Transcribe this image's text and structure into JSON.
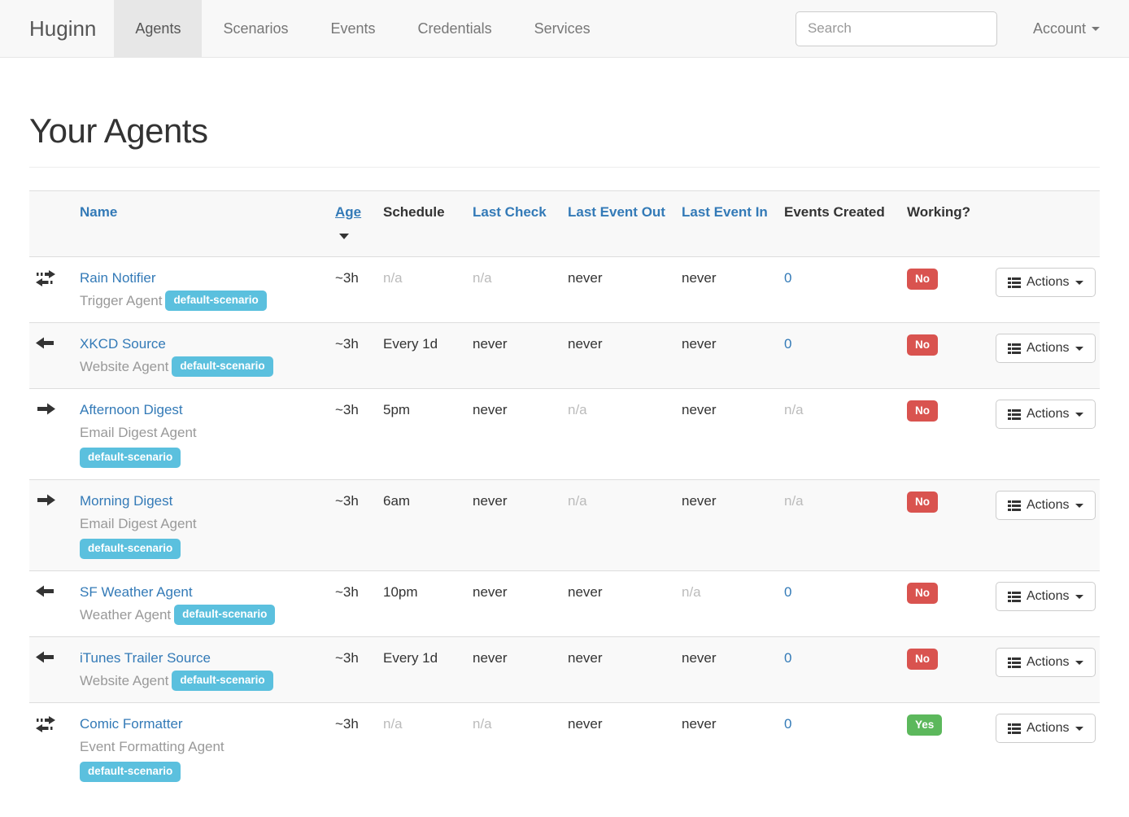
{
  "navbar": {
    "brand": "Huginn",
    "items": [
      {
        "label": "Agents",
        "active": true
      },
      {
        "label": "Scenarios",
        "active": false
      },
      {
        "label": "Events",
        "active": false
      },
      {
        "label": "Credentials",
        "active": false
      },
      {
        "label": "Services",
        "active": false
      }
    ],
    "search_placeholder": "Search",
    "account_label": "Account"
  },
  "page": {
    "title": "Your Agents"
  },
  "table": {
    "headers": [
      {
        "label": "Name",
        "sortable": true,
        "sorted": false
      },
      {
        "label": "Age",
        "sortable": true,
        "sorted": true
      },
      {
        "label": "Schedule",
        "sortable": false
      },
      {
        "label": "Last Check",
        "sortable": true
      },
      {
        "label": "Last Event Out",
        "sortable": true
      },
      {
        "label": "Last Event In",
        "sortable": true
      },
      {
        "label": "Events Created",
        "sortable": false
      },
      {
        "label": "Working?",
        "sortable": false
      }
    ],
    "action_button_label": "Actions",
    "rows": [
      {
        "icon": "transfer-icon",
        "name": "Rain Notifier",
        "type": "Trigger Agent",
        "scenario": "default-scenario",
        "stacked": false,
        "age": "~3h",
        "schedule": "n/a",
        "last_check": "n/a",
        "last_event_out": "never",
        "last_event_in": "never",
        "events_created": "0",
        "working": "No"
      },
      {
        "icon": "arrow-left-icon",
        "name": "XKCD Source",
        "type": "Website Agent",
        "scenario": "default-scenario",
        "stacked": false,
        "age": "~3h",
        "schedule": "Every 1d",
        "last_check": "never",
        "last_event_out": "never",
        "last_event_in": "never",
        "events_created": "0",
        "working": "No"
      },
      {
        "icon": "arrow-right-icon",
        "name": "Afternoon Digest",
        "type": "Email Digest Agent",
        "scenario": "default-scenario",
        "stacked": true,
        "age": "~3h",
        "schedule": "5pm",
        "last_check": "never",
        "last_event_out": "n/a",
        "last_event_in": "never",
        "events_created": "n/a",
        "working": "No"
      },
      {
        "icon": "arrow-right-icon",
        "name": "Morning Digest",
        "type": "Email Digest Agent",
        "scenario": "default-scenario",
        "stacked": true,
        "age": "~3h",
        "schedule": "6am",
        "last_check": "never",
        "last_event_out": "n/a",
        "last_event_in": "never",
        "events_created": "n/a",
        "working": "No"
      },
      {
        "icon": "arrow-left-icon",
        "name": "SF Weather Agent",
        "type": "Weather Agent",
        "scenario": "default-scenario",
        "stacked": false,
        "age": "~3h",
        "schedule": "10pm",
        "last_check": "never",
        "last_event_out": "never",
        "last_event_in": "n/a",
        "events_created": "0",
        "working": "No"
      },
      {
        "icon": "arrow-left-icon",
        "name": "iTunes Trailer Source",
        "type": "Website Agent",
        "scenario": "default-scenario",
        "stacked": false,
        "age": "~3h",
        "schedule": "Every 1d",
        "last_check": "never",
        "last_event_out": "never",
        "last_event_in": "never",
        "events_created": "0",
        "working": "No"
      },
      {
        "icon": "transfer-icon",
        "name": "Comic Formatter",
        "type": "Event Formatting Agent",
        "scenario": "default-scenario",
        "stacked": true,
        "age": "~3h",
        "schedule": "n/a",
        "last_check": "n/a",
        "last_event_out": "never",
        "last_event_in": "never",
        "events_created": "0",
        "working": "Yes"
      }
    ]
  },
  "colors": {
    "link_blue": "#337ab7",
    "badge_info": "#5bc0de",
    "badge_danger": "#d9534f",
    "badge_success": "#5cb85c",
    "navbar_bg": "#f8f8f8",
    "navbar_active_bg": "#e7e7e7",
    "stripe_bg": "#f9f9f9"
  }
}
